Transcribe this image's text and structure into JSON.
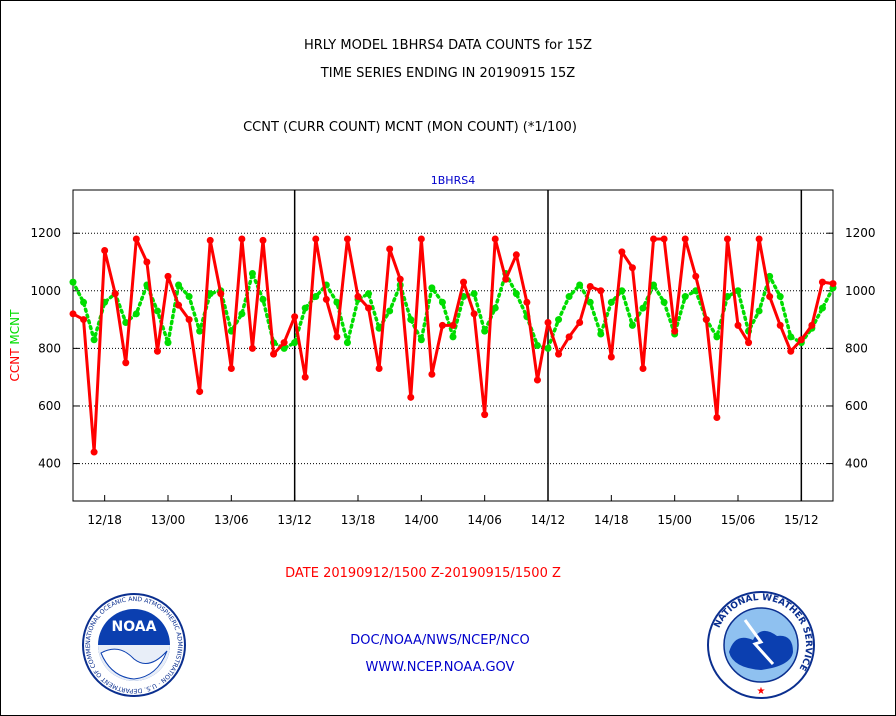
{
  "header": {
    "title_line1": "HRLY MODEL 1BHRS4 DATA COUNTS for 15Z",
    "title_line2": "TIME SERIES ENDING IN 20190915 15Z",
    "subtitle": "CCNT (CURR COUNT) MCNT (MON COUNT) (*1/100)"
  },
  "footer": {
    "date_range": "DATE 20190912/1500 Z-20190915/1500 Z",
    "org_line": "DOC/NOAA/NWS/NCEP/NCO",
    "url_line": "WWW.NCEP.NOAA.GOV"
  },
  "logos": {
    "left": {
      "name": "noaa-logo",
      "text": "NOAA",
      "ring_text": "NATIONAL OCEANIC AND ATMOSPHERIC ADMINISTRATION · U.S. DEPARTMENT OF COMMERCE"
    },
    "right": {
      "name": "nws-logo",
      "ring_text": "NATIONAL WEATHER SERVICE"
    }
  },
  "colors": {
    "ccnt": "#ff0000",
    "mcnt": "#00dd00",
    "panel_label": "#0000cc",
    "footer_red": "#ff0000",
    "footer_blue": "#0000cc"
  },
  "chart_data": {
    "type": "line",
    "title": "1BHRS4",
    "ylabel_left": [
      "CCNT",
      "MCNT"
    ],
    "ylim": [
      270,
      1350
    ],
    "yticks": [
      400,
      600,
      800,
      1000,
      1200
    ],
    "grid": "dotted horizontal at y ticks",
    "x_tick_labels": [
      "12/18",
      "13/00",
      "13/06",
      "13/12",
      "13/18",
      "14/00",
      "14/06",
      "14/12",
      "14/18",
      "15/00",
      "15/06",
      "15/12"
    ],
    "x_tick_hours": [
      3,
      9,
      15,
      21,
      27,
      33,
      39,
      45,
      51,
      57,
      63,
      69
    ],
    "day_boundaries_hours": [
      21,
      45,
      69
    ],
    "x_hours_start": 0,
    "x_hours_end": 72,
    "series": [
      {
        "name": "CCNT",
        "values": [
          920,
          900,
          440,
          1140,
          990,
          750,
          1180,
          1100,
          790,
          1050,
          950,
          900,
          650,
          1175,
          990,
          730,
          1180,
          800,
          1175,
          780,
          820,
          910,
          700,
          1180,
          970,
          840,
          1180,
          980,
          940,
          730,
          1145,
          1040,
          630,
          1180,
          710,
          880,
          880,
          1030,
          920,
          570,
          1180,
          1040,
          1125,
          960,
          690,
          890,
          780,
          840,
          890,
          1015,
          1000,
          770,
          1135,
          1080,
          730,
          1180,
          1180,
          860,
          1180,
          1050,
          900,
          560,
          1180,
          880,
          820,
          1180,
          980,
          880,
          790,
          830,
          880,
          1030,
          1025
        ]
      },
      {
        "name": "MCNT",
        "values": [
          1030,
          960,
          830,
          960,
          990,
          890,
          920,
          1020,
          930,
          820,
          1020,
          980,
          860,
          990,
          1000,
          860,
          920,
          1060,
          970,
          820,
          800,
          820,
          940,
          980,
          1020,
          960,
          820,
          970,
          990,
          870,
          930,
          1020,
          900,
          830,
          1010,
          960,
          840,
          980,
          990,
          860,
          940,
          1060,
          990,
          910,
          810,
          800,
          900,
          980,
          1020,
          960,
          850,
          960,
          1000,
          880,
          940,
          1020,
          960,
          850,
          980,
          1000,
          900,
          840,
          980,
          1000,
          860,
          930,
          1050,
          980,
          840,
          820,
          870,
          940,
          1010
        ]
      }
    ]
  }
}
